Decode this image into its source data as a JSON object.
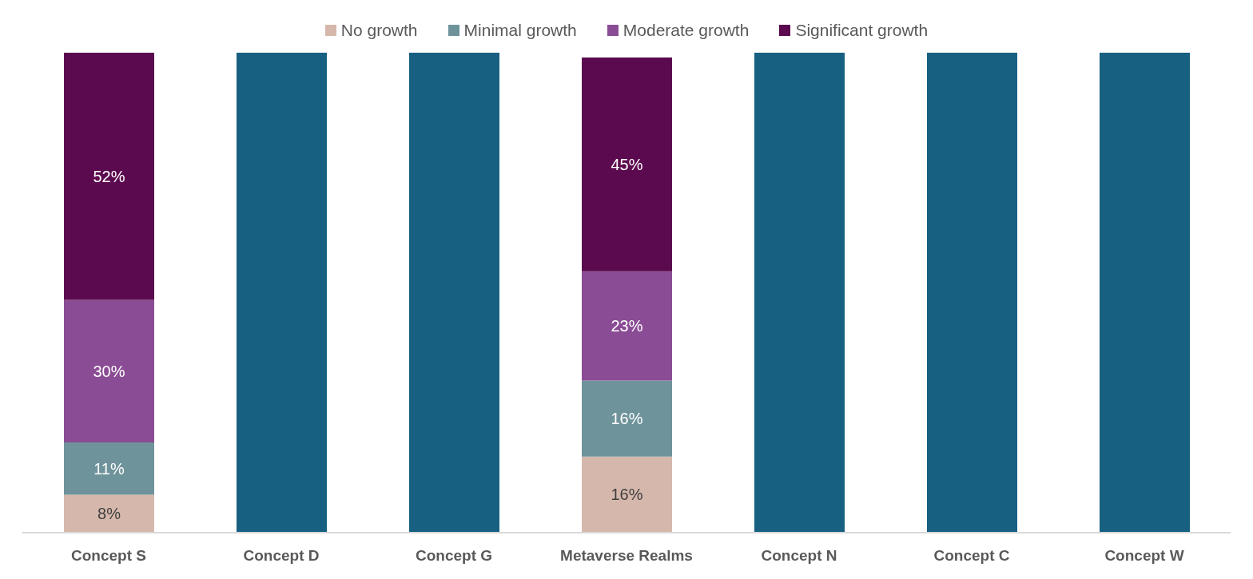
{
  "chart_data": {
    "type": "bar",
    "stacked": true,
    "legend": "top",
    "data_labels": false,
    "categories": [
      "Concept S",
      "Concept D",
      "Concept G",
      "Metaverse Realms",
      "Concept N",
      "Concept C",
      "Concept W"
    ],
    "series": [
      {
        "name": "No growth",
        "color": "#d5b8ab",
        "values": [
          8,
          null,
          null,
          16,
          null,
          null,
          null
        ],
        "value_labels": [
          "8%",
          null,
          null,
          "16%",
          null,
          null,
          null
        ]
      },
      {
        "name": "Minimal growth",
        "color": "#6f939b",
        "values": [
          11,
          null,
          null,
          16,
          null,
          null,
          null
        ],
        "value_labels": [
          "11%",
          null,
          null,
          "16%",
          null,
          null,
          null
        ]
      },
      {
        "name": "Moderate growth",
        "color": "#8a4c94",
        "values": [
          30,
          null,
          null,
          23,
          null,
          null,
          null
        ],
        "value_labels": [
          "30%",
          null,
          null,
          "23%",
          null,
          null,
          null
        ]
      },
      {
        "name": "Significant growth",
        "color": "#5c0a4f",
        "values": [
          52,
          null,
          null,
          45,
          null,
          null,
          null
        ],
        "value_labels": [
          "52%",
          null,
          null,
          "45%",
          null,
          null,
          null
        ]
      },
      {
        "color": "#176082",
        "values": [
          null,
          101,
          101,
          null,
          101,
          101,
          101
        ]
      }
    ]
  }
}
